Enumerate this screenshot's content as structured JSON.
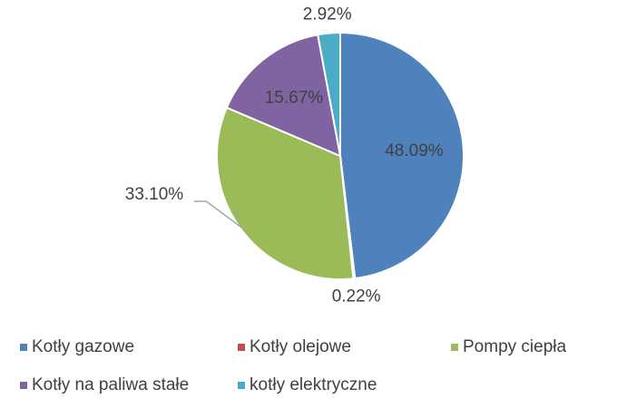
{
  "chart_data": {
    "type": "pie",
    "categories": [
      "Kotły gazowe",
      "Kotły olejowe",
      "Pompy ciepła",
      "Kotły na paliwa stałe",
      "kotły elektryczne"
    ],
    "values": [
      48.09,
      0.22,
      33.1,
      15.67,
      2.92
    ],
    "value_labels": [
      "48.09%",
      "0.22%",
      "33.10%",
      "15.67%",
      "2.92%"
    ],
    "colors": [
      "#4f81bd",
      "#c0504d",
      "#9bbb59",
      "#8064a2",
      "#4bacc6"
    ],
    "legend": "bottom"
  }
}
